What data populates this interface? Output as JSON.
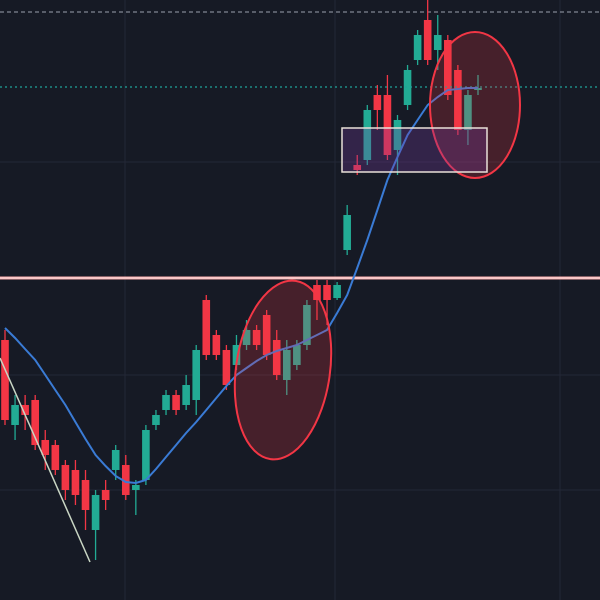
{
  "chart_data": {
    "type": "candlestick",
    "ylim": [
      0,
      600
    ],
    "up_color": "#22ab94",
    "down_color": "#f23645",
    "open": [
      260,
      175,
      195,
      200,
      160,
      155,
      135,
      130,
      120,
      70,
      110,
      130,
      135,
      110,
      120,
      175,
      190,
      205,
      195,
      200,
      300,
      265,
      250,
      235,
      255,
      270,
      285,
      260,
      220,
      235,
      255,
      315,
      315,
      302,
      350,
      435,
      440,
      505,
      505,
      450,
      495,
      540,
      580,
      550,
      560,
      530,
      470,
      510
    ],
    "high": [
      270,
      205,
      205,
      205,
      170,
      160,
      140,
      140,
      130,
      110,
      120,
      155,
      145,
      120,
      175,
      190,
      210,
      210,
      225,
      255,
      305,
      270,
      255,
      265,
      280,
      275,
      290,
      270,
      260,
      260,
      300,
      320,
      320,
      318,
      395,
      445,
      495,
      515,
      525,
      485,
      535,
      570,
      600,
      585,
      565,
      535,
      510,
      525
    ],
    "low": [
      175,
      160,
      170,
      150,
      130,
      125,
      100,
      95,
      70,
      40,
      90,
      120,
      100,
      85,
      115,
      170,
      185,
      185,
      190,
      185,
      240,
      240,
      210,
      230,
      250,
      250,
      240,
      220,
      205,
      230,
      250,
      280,
      275,
      300,
      345,
      425,
      435,
      470,
      440,
      425,
      490,
      535,
      535,
      530,
      500,
      465,
      455,
      505
    ],
    "close": [
      180,
      195,
      185,
      155,
      145,
      130,
      110,
      105,
      90,
      105,
      100,
      150,
      105,
      115,
      170,
      185,
      205,
      190,
      215,
      250,
      245,
      245,
      215,
      255,
      270,
      255,
      245,
      225,
      250,
      255,
      295,
      300,
      300,
      315,
      385,
      430,
      490,
      490,
      445,
      480,
      530,
      565,
      540,
      565,
      505,
      470,
      505,
      512
    ],
    "moving_average": {
      "color": "#3a7bd5",
      "values": [
        272,
        262,
        251,
        240,
        225,
        210,
        195,
        178,
        161,
        145,
        134,
        124,
        118,
        117,
        120,
        131,
        143,
        155,
        167,
        178,
        190,
        202,
        214,
        225,
        232,
        239,
        245,
        249,
        252,
        255,
        260,
        265,
        270,
        287,
        305,
        332,
        360,
        390,
        420,
        443,
        465,
        480,
        495,
        503,
        510,
        511,
        512,
        512
      ]
    },
    "level_line": {
      "value": 322,
      "color": "#f7a6a6"
    },
    "price_line": {
      "value": 513,
      "color": "#1fa39a"
    }
  }
}
